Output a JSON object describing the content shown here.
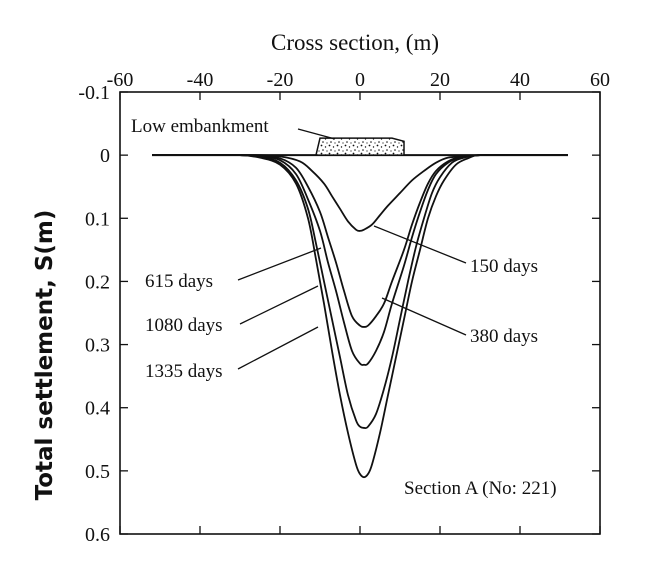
{
  "chart_data": {
    "type": "line",
    "title": "",
    "xlabel": "Cross section,  (m)",
    "ylabel": "Total settlement,  S(m)",
    "xlim": [
      -60,
      60
    ],
    "ylim": [
      -0.1,
      0.6
    ],
    "y_inverted": true,
    "x_ticks": [
      -60,
      -40,
      -20,
      0,
      20,
      40,
      60
    ],
    "x_tick_labels": [
      "-60",
      "-40",
      "-20",
      "0",
      "20",
      "40",
      "60"
    ],
    "y_ticks": [
      -0.1,
      0,
      0.1,
      0.2,
      0.3,
      0.4,
      0.5,
      0.6
    ],
    "y_tick_labels": [
      "-0.1",
      "0",
      "0.1",
      "0.2",
      "0.3",
      "0.4",
      "0.5",
      "0.6"
    ],
    "grid": false,
    "series": [
      {
        "name": "150 days",
        "x": [
          -52,
          -40,
          -30,
          -25,
          -20,
          -15,
          -12,
          -9,
          -7,
          -5,
          -3,
          -1,
          0,
          1,
          3,
          5,
          7,
          10,
          13,
          16,
          19,
          22,
          26,
          30,
          40,
          52
        ],
        "y": [
          0,
          0,
          0,
          0,
          0.002,
          0.01,
          0.025,
          0.045,
          0.065,
          0.085,
          0.105,
          0.118,
          0.12,
          0.118,
          0.11,
          0.095,
          0.08,
          0.06,
          0.04,
          0.025,
          0.012,
          0.004,
          0.002,
          0,
          0,
          0
        ]
      },
      {
        "name": "380 days",
        "x": [
          -52,
          -40,
          -30,
          -25,
          -20,
          -16,
          -13,
          -10,
          -8,
          -6,
          -4,
          -2,
          0,
          1,
          2,
          4,
          6,
          8,
          11,
          13,
          15,
          17,
          19,
          22,
          25,
          30,
          40,
          52
        ],
        "y": [
          0,
          0,
          0,
          0.001,
          0.005,
          0.02,
          0.05,
          0.09,
          0.13,
          0.17,
          0.215,
          0.255,
          0.27,
          0.272,
          0.27,
          0.255,
          0.235,
          0.2,
          0.15,
          0.11,
          0.075,
          0.045,
          0.025,
          0.01,
          0.003,
          0,
          0,
          0
        ]
      },
      {
        "name": "615 days",
        "x": [
          -52,
          -40,
          -30,
          -25,
          -20,
          -16,
          -13,
          -10,
          -8,
          -6,
          -4,
          -2,
          0,
          1,
          2,
          4,
          6,
          8,
          11,
          13,
          15,
          17,
          19,
          22,
          25,
          30,
          40,
          52
        ],
        "y": [
          0,
          0,
          0,
          0.002,
          0.008,
          0.03,
          0.07,
          0.12,
          0.17,
          0.215,
          0.265,
          0.31,
          0.33,
          0.332,
          0.33,
          0.31,
          0.28,
          0.235,
          0.175,
          0.13,
          0.09,
          0.055,
          0.03,
          0.012,
          0.004,
          0,
          0,
          0
        ]
      },
      {
        "name": "1080 days",
        "x": [
          -52,
          -40,
          -30,
          -25,
          -20,
          -16,
          -13,
          -11,
          -9,
          -7,
          -5,
          -3,
          -1,
          0,
          1,
          2,
          4,
          6,
          8,
          10,
          12,
          14,
          16,
          18,
          20,
          23,
          26,
          30,
          40,
          52
        ],
        "y": [
          0,
          0,
          0,
          0.003,
          0.012,
          0.04,
          0.085,
          0.14,
          0.2,
          0.26,
          0.32,
          0.38,
          0.42,
          0.43,
          0.432,
          0.43,
          0.41,
          0.37,
          0.32,
          0.26,
          0.2,
          0.145,
          0.1,
          0.06,
          0.035,
          0.012,
          0.004,
          0,
          0,
          0
        ]
      },
      {
        "name": "1335 days",
        "x": [
          -52,
          -40,
          -30,
          -25,
          -20,
          -16,
          -13,
          -11,
          -9,
          -7,
          -5,
          -3,
          -1,
          0,
          1,
          2,
          3,
          5,
          7,
          9,
          11,
          13,
          15,
          17,
          19,
          21,
          24,
          27,
          30,
          40,
          52
        ],
        "y": [
          0,
          0,
          0,
          0.004,
          0.015,
          0.045,
          0.1,
          0.165,
          0.235,
          0.31,
          0.38,
          0.44,
          0.49,
          0.505,
          0.51,
          0.505,
          0.49,
          0.44,
          0.38,
          0.32,
          0.26,
          0.2,
          0.15,
          0.1,
          0.065,
          0.04,
          0.015,
          0.005,
          0,
          0,
          0
        ]
      }
    ],
    "embankment": {
      "label": "Low embankment",
      "x": [
        -11,
        -10,
        8,
        11,
        11,
        -11
      ],
      "y": [
        0,
        -0.027,
        -0.027,
        -0.022,
        0,
        0
      ]
    },
    "annotations": [
      {
        "text": "150 days",
        "series": "150 days"
      },
      {
        "text": "380 days",
        "series": "380 days"
      },
      {
        "text": "615 days",
        "series": "615 days"
      },
      {
        "text": "1080 days",
        "series": "1080 days"
      },
      {
        "text": "1335 days",
        "series": "1335 days"
      },
      {
        "text": "Section A (No: 221)"
      }
    ],
    "legend": "none"
  }
}
